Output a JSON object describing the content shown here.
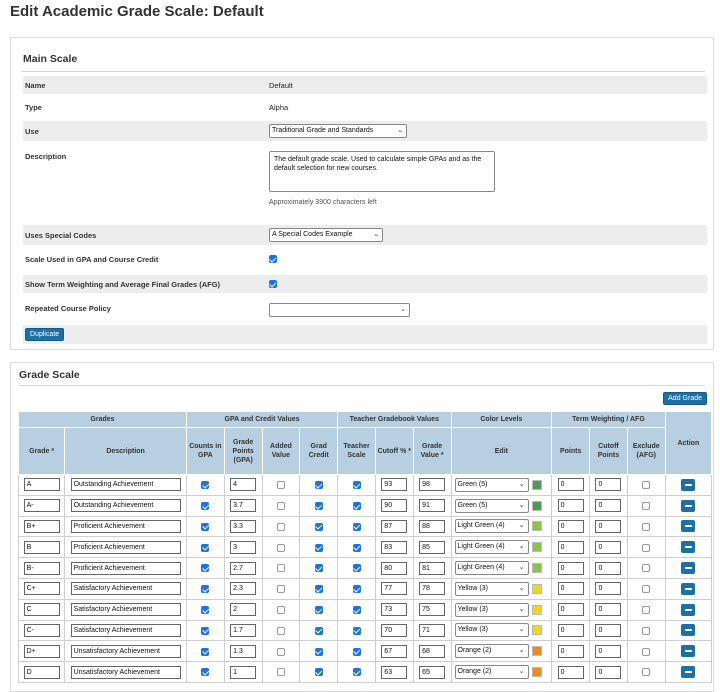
{
  "page": {
    "title": "Edit Academic Grade Scale: Default"
  },
  "main_scale": {
    "title": "Main Scale",
    "name_label": "Name",
    "name_value": "Default",
    "type_label": "Type",
    "type_value": "Alpha",
    "use_label": "Use",
    "use_value": "Traditional Grade and Standards",
    "description_label": "Description",
    "description_value": "The default grade scale. Used to calculate simple GPAs and as the default selection for new courses.",
    "chars_left": "Approximately 3900 characters left",
    "special_codes_label": "Uses Special Codes",
    "special_codes_value": "A Special Codes Example",
    "gpa_credit_label": "Scale Used in GPA and Course Credit",
    "gpa_credit_checked": true,
    "term_weighting_label": "Show Term Weighting and Average Final Grades (AFG)",
    "term_weighting_checked": true,
    "repeated_policy_label": "Repeated Course Policy",
    "repeated_policy_value": "",
    "duplicate_label": "Duplicate"
  },
  "grade_scale": {
    "title": "Grade Scale",
    "add_grade_label": "Add Grade",
    "group_headers": {
      "grades": "Grades",
      "gpa": "GPA and Credit Values",
      "teacher": "Teacher Gradebook Values",
      "color": "Color Levels",
      "term": "Term Weighting / AFG",
      "action": "Action"
    },
    "columns": {
      "grade": "Grade *",
      "description": "Description",
      "counts_gpa": "Counts in GPA",
      "grade_points": "Grade Points (GPA)",
      "added_value": "Added Value",
      "grad_credit": "Grad Credit",
      "teacher_scale": "Teacher Scale",
      "cutoff": "Cutoff % *",
      "grade_value": "Grade Value *",
      "edit": "Edit",
      "points": "Points",
      "cutoff_points": "Cutoff Points",
      "exclude_afg": "Exclude (AFG)"
    },
    "rows": [
      {
        "grade": "A",
        "description": "Outstanding Achievement",
        "gpa": "4",
        "cutoff": "93",
        "value": "98",
        "color_label": "Green (5)",
        "color": "#4f9a52",
        "points": "0",
        "cutoff_points": "0"
      },
      {
        "grade": "A-",
        "description": "Outstanding Achievement",
        "gpa": "3.7",
        "cutoff": "90",
        "value": "91",
        "color_label": "Green (5)",
        "color": "#4f9a52",
        "points": "0",
        "cutoff_points": "0"
      },
      {
        "grade": "B+",
        "description": "Proficient Achievement",
        "gpa": "3.3",
        "cutoff": "87",
        "value": "88",
        "color_label": "Light Green (4)",
        "color": "#8bc34a",
        "points": "0",
        "cutoff_points": "0"
      },
      {
        "grade": "B",
        "description": "Proficient Achievement",
        "gpa": "3",
        "cutoff": "83",
        "value": "85",
        "color_label": "Light Green (4)",
        "color": "#8bc34a",
        "points": "0",
        "cutoff_points": "0"
      },
      {
        "grade": "B-",
        "description": "Proficient Achievement",
        "gpa": "2.7",
        "cutoff": "80",
        "value": "81",
        "color_label": "Light Green (4)",
        "color": "#8bc34a",
        "points": "0",
        "cutoff_points": "0"
      },
      {
        "grade": "C+",
        "description": "Satisfactory Achievement",
        "gpa": "2.3",
        "cutoff": "77",
        "value": "78",
        "color_label": "Yellow (3)",
        "color": "#f2d22e",
        "points": "0",
        "cutoff_points": "0"
      },
      {
        "grade": "C",
        "description": "Satisfactory Achievement",
        "gpa": "2",
        "cutoff": "73",
        "value": "75",
        "color_label": "Yellow (3)",
        "color": "#f2d22e",
        "points": "0",
        "cutoff_points": "0"
      },
      {
        "grade": "C-",
        "description": "Satisfactory Achievement",
        "gpa": "1.7",
        "cutoff": "70",
        "value": "71",
        "color_label": "Yellow (3)",
        "color": "#f2d22e",
        "points": "0",
        "cutoff_points": "0"
      },
      {
        "grade": "D+",
        "description": "Unsatisfactory Achievement",
        "gpa": "1.3",
        "cutoff": "67",
        "value": "68",
        "color_label": "Orange (2)",
        "color": "#ef8a22",
        "points": "0",
        "cutoff_points": "0"
      },
      {
        "grade": "D",
        "description": "Unsatisfactory Achievement",
        "gpa": "1",
        "cutoff": "63",
        "value": "65",
        "color_label": "Orange (2)",
        "color": "#ef8a22",
        "points": "0",
        "cutoff_points": "0"
      }
    ]
  }
}
